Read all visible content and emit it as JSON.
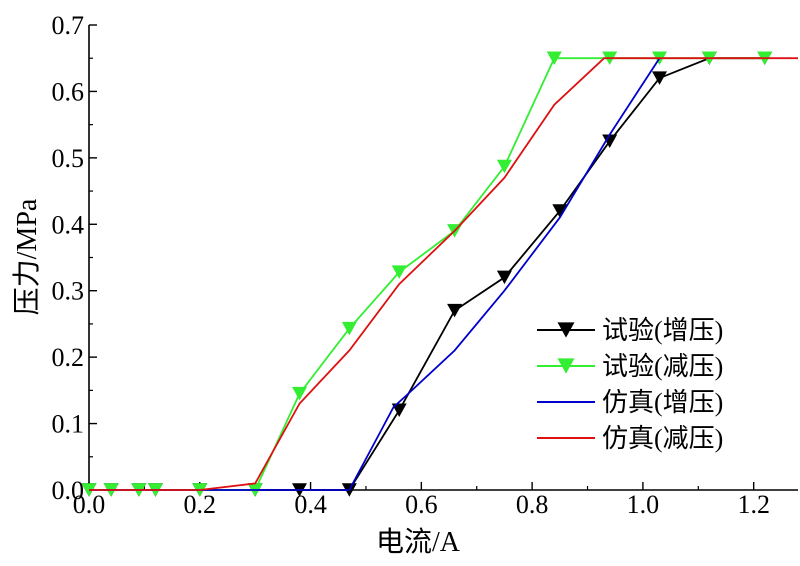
{
  "chart_data": {
    "type": "line",
    "title": "",
    "xlabel": "电流/A",
    "ylabel": "压力/MPa",
    "xlim": [
      0.0,
      1.28
    ],
    "ylim": [
      0.0,
      0.7
    ],
    "xticks": [
      0.0,
      0.2,
      0.4,
      0.6,
      0.8,
      1.0,
      1.2
    ],
    "xtick_labels": [
      "0.0",
      "0.2",
      "0.4",
      "0.6",
      "0.8",
      "1.0",
      "1.2"
    ],
    "yticks": [
      0.0,
      0.1,
      0.2,
      0.3,
      0.4,
      0.5,
      0.6,
      0.7
    ],
    "ytick_labels": [
      "0.0",
      "0.1",
      "0.2",
      "0.3",
      "0.4",
      "0.5",
      "0.6",
      "0.7"
    ],
    "grid": false,
    "legend_position": "bottom-right",
    "series": [
      {
        "name": "试验(增压)",
        "color": "#000000",
        "marker": "triangle-down",
        "x": [
          0.0,
          0.04,
          0.09,
          0.12,
          0.2,
          0.3,
          0.38,
          0.47,
          0.56,
          0.66,
          0.75,
          0.85,
          0.94,
          1.03,
          1.12,
          1.22
        ],
        "y": [
          0.0,
          0.0,
          0.0,
          0.0,
          0.0,
          0.0,
          0.0,
          0.0,
          0.12,
          0.27,
          0.32,
          0.42,
          0.525,
          0.62,
          0.65,
          0.65
        ]
      },
      {
        "name": "试验(减压)",
        "color": "#33ee33",
        "marker": "triangle-down",
        "x": [
          0.0,
          0.04,
          0.09,
          0.12,
          0.2,
          0.3,
          0.38,
          0.47,
          0.56,
          0.66,
          0.75,
          0.84,
          0.94,
          1.03,
          1.12,
          1.22
        ],
        "y": [
          0.0,
          0.0,
          0.0,
          0.0,
          0.0,
          0.0,
          0.145,
          0.243,
          0.328,
          0.39,
          0.487,
          0.65,
          0.65,
          0.65,
          0.65,
          0.65
        ]
      },
      {
        "name": "仿真(增压)",
        "color": "#0000cc",
        "marker": "none",
        "x": [
          0.0,
          0.2,
          0.3,
          0.47,
          0.55,
          0.57,
          0.66,
          0.75,
          0.85,
          0.94,
          1.03
        ],
        "y": [
          0.0,
          0.0,
          0.0,
          0.0,
          0.125,
          0.14,
          0.21,
          0.3,
          0.41,
          0.535,
          0.65
        ]
      },
      {
        "name": "仿真(减压)",
        "color": "#dd1111",
        "marker": "none",
        "x": [
          0.0,
          0.2,
          0.3,
          0.38,
          0.47,
          0.56,
          0.66,
          0.75,
          0.84,
          0.93,
          1.03,
          1.12,
          1.22,
          1.28
        ],
        "y": [
          0.0,
          0.0,
          0.01,
          0.13,
          0.21,
          0.31,
          0.39,
          0.47,
          0.58,
          0.65,
          0.65,
          0.65,
          0.65,
          0.65
        ]
      }
    ]
  }
}
